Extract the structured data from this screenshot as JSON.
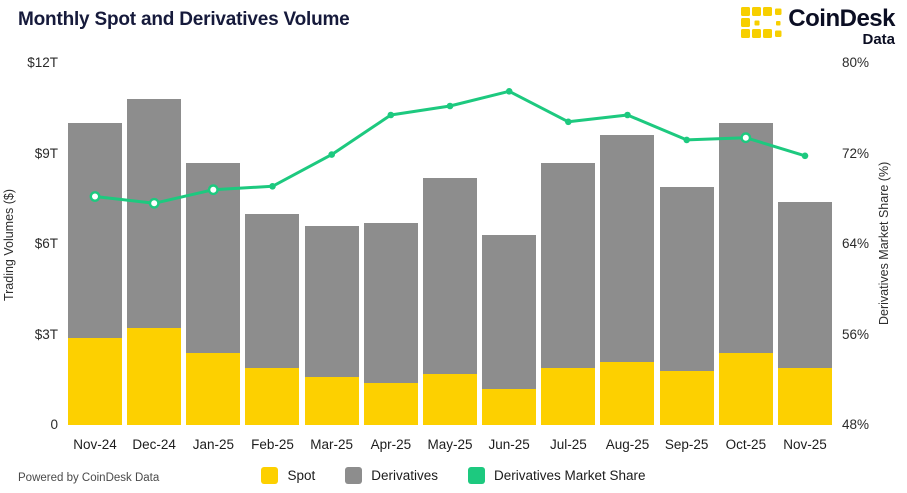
{
  "header": {
    "title": "Monthly Spot and Derivatives Volume",
    "brand": {
      "name": "CoinDesk",
      "sub": "Data"
    }
  },
  "footer": {
    "powered_by": "Powered by CoinDesk Data"
  },
  "legend": [
    {
      "label": "Spot",
      "color": "#FDD000"
    },
    {
      "label": "Derivatives",
      "color": "#8D8D8D"
    },
    {
      "label": "Derivatives Market Share",
      "color": "#1DC97F"
    }
  ],
  "colors": {
    "spot": "#FDD000",
    "derivatives": "#8D8D8D",
    "market_share_line": "#1DC97F",
    "title_text": "#161A3B",
    "brand_yellow": "#F7CF00"
  },
  "chart_data": {
    "type": "bar",
    "subtype": "stacked-bars-with-line",
    "title": "Monthly Spot and Derivatives Volume",
    "categories": [
      "Nov-24",
      "Dec-24",
      "Jan-25",
      "Feb-25",
      "Mar-25",
      "Apr-25",
      "May-25",
      "Jun-25",
      "Jul-25",
      "Aug-25",
      "Sep-25",
      "Oct-25",
      "Nov-25"
    ],
    "series": [
      {
        "name": "Spot",
        "type": "bar",
        "stack": "volume",
        "axis": "left",
        "unit": "trillion USD",
        "values": [
          2.9,
          3.2,
          2.4,
          1.9,
          1.6,
          1.4,
          1.7,
          1.2,
          1.9,
          2.1,
          1.8,
          2.4,
          1.9
        ]
      },
      {
        "name": "Derivatives",
        "type": "bar",
        "stack": "volume",
        "axis": "left",
        "unit": "trillion USD",
        "values": [
          7.1,
          7.6,
          6.3,
          5.1,
          5.0,
          5.3,
          6.5,
          5.1,
          6.8,
          7.5,
          6.1,
          7.6,
          5.5
        ]
      },
      {
        "name": "Derivatives Market Share",
        "type": "line",
        "axis": "right",
        "unit": "%",
        "values": [
          68.2,
          67.6,
          68.8,
          69.1,
          71.9,
          75.4,
          76.2,
          77.5,
          74.8,
          75.4,
          73.2,
          73.4,
          71.8
        ],
        "marker_styles": [
          "ring",
          "ring",
          "ring",
          "dot",
          "dot",
          "dot",
          "dot",
          "dot",
          "dot",
          "dot",
          "dot",
          "ring",
          "dot"
        ]
      }
    ],
    "left_axis": {
      "label": "Trading Volumes ($)",
      "min": 0,
      "max": 12,
      "ticks": [
        "$12T",
        "$9T",
        "$6T",
        "$3T",
        "0"
      ]
    },
    "right_axis": {
      "label": "Derivatives Market Share (%)",
      "min": 48,
      "max": 80,
      "ticks": [
        "80%",
        "72%",
        "64%",
        "56%",
        "48%"
      ]
    },
    "grid": false,
    "legend_position": "bottom-center"
  }
}
